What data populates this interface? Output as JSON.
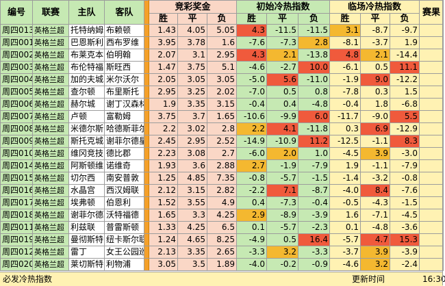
{
  "headers": {
    "id": "编号",
    "league": "联赛",
    "home": "主队",
    "away": "客队",
    "jingcai": "竞彩奖金",
    "initial": "初始冷热指数",
    "live": "临场冷热指数",
    "result": "赛果",
    "win": "胜",
    "draw": "平",
    "lose": "负"
  },
  "rows": [
    {
      "id": "周四013",
      "league": "英格兰超",
      "home": "托特纳姆",
      "away": "布赖顿",
      "jc": [
        "1.43",
        "4.05",
        "5.05"
      ],
      "init": [
        "4.3",
        "-11.5",
        "-11.5"
      ],
      "live": [
        "3.1",
        "-8.7",
        "-9.7"
      ]
    },
    {
      "id": "周四001",
      "league": "英格兰超",
      "home": "巴恩斯利",
      "away": "西布罗维",
      "jc": [
        "3.95",
        "3.78",
        "1.6"
      ],
      "init": [
        "-7.6",
        "-7.3",
        "2.8"
      ],
      "live": [
        "-8.1",
        "-3.7",
        "1.9"
      ]
    },
    {
      "id": "周四002",
      "league": "英格兰超",
      "home": "布莱克本",
      "away": "伯明翰",
      "jc": [
        "2.07",
        "3.1",
        "2.95"
      ],
      "init": [
        "4.3",
        "2.1",
        "-13.8"
      ],
      "live": [
        "4.8",
        "2.1",
        "-14.4"
      ]
    },
    {
      "id": "周四003",
      "league": "英格兰超",
      "home": "布伦特福",
      "away": "斯旺西",
      "jc": [
        "1.47",
        "3.75",
        "5.1"
      ],
      "init": [
        "-4.6",
        "-2.7",
        "10.0"
      ],
      "live": [
        "-6.1",
        "0.5",
        "11.1"
      ]
    },
    {
      "id": "周四004",
      "league": "英格兰超",
      "home": "加的夫城",
      "away": "米尔沃尔",
      "jc": [
        "2.05",
        "3.05",
        "3.05"
      ],
      "init": [
        "-5.0",
        "5.6",
        "-11.0"
      ],
      "live": [
        "-1.9",
        "9.0",
        "-12.2"
      ]
    },
    {
      "id": "周四005",
      "league": "英格兰超",
      "home": "查尔顿",
      "away": "布里斯托",
      "jc": [
        "2.95",
        "3.25",
        "2.02"
      ],
      "init": [
        "-7.0",
        "0.5",
        "0.8"
      ],
      "live": [
        "-7.8",
        "0.3",
        "1.5"
      ]
    },
    {
      "id": "周四006",
      "league": "英格兰超",
      "home": "赫尔城",
      "away": "谢丁汉森林",
      "jc": [
        "1.9",
        "3.35",
        "3.15"
      ],
      "init": [
        "-0.4",
        "0.4",
        "-4.8"
      ],
      "live": [
        "-0.4",
        "1.8",
        "-6.8"
      ]
    },
    {
      "id": "周四007",
      "league": "英格兰超",
      "home": "卢顿",
      "away": "富勒姆",
      "jc": [
        "3.75",
        "3.7",
        "1.65"
      ],
      "init": [
        "-10.6",
        "-9.9",
        "6.0"
      ],
      "live": [
        "-11.7",
        "-9.0",
        "5.5"
      ]
    },
    {
      "id": "周四008",
      "league": "英格兰超",
      "home": "米德尔斯",
      "away": "哈德斯菲尔",
      "jc": [
        "2.2",
        "3.02",
        "2.8"
      ],
      "init": [
        "2.2",
        "4.1",
        "-11.8"
      ],
      "live": [
        "0.3",
        "6.9",
        "-12.9"
      ]
    },
    {
      "id": "周四009",
      "league": "英格兰超",
      "home": "斯托克城",
      "away": "谢菲尔德星",
      "jc": [
        "2.45",
        "2.95",
        "2.52"
      ],
      "init": [
        "-14.9",
        "-10.9",
        "11.2"
      ],
      "live": [
        "-12.5",
        "-1.1",
        "8.3"
      ]
    },
    {
      "id": "周四010",
      "league": "英格兰超",
      "home": "维冈竞技",
      "away": "德比郡",
      "jc": [
        "2.23",
        "3.08",
        "2.7"
      ],
      "init": [
        "-6.0",
        "2.0",
        "1.0"
      ],
      "live": [
        "-4.5",
        "3.9",
        "-3.0"
      ]
    },
    {
      "id": "周四014",
      "league": "英格兰超",
      "home": "阿斯顿维",
      "away": "诺维奇",
      "jc": [
        "1.93",
        "3.6",
        "2.88"
      ],
      "init": [
        "2.7",
        "-1.9",
        "-7.9"
      ],
      "live": [
        "1.9",
        "-1.1",
        "-7.9"
      ]
    },
    {
      "id": "周四015",
      "league": "英格兰超",
      "home": "切尔西",
      "away": "南安普敦",
      "jc": [
        "1.25",
        "4.85",
        "7.35"
      ],
      "init": [
        "-0.8",
        "-5.7",
        "-1.5"
      ],
      "live": [
        "-1.4",
        "-3.2",
        "-0.8"
      ]
    },
    {
      "id": "周四016",
      "league": "英格兰超",
      "home": "水晶宫",
      "away": "西汉姆联",
      "jc": [
        "2.12",
        "3.15",
        "2.82"
      ],
      "init": [
        "-2.2",
        "7.1",
        "-8.7"
      ],
      "live": [
        "-4.0",
        "8.4",
        "-7.6"
      ]
    },
    {
      "id": "周四017",
      "league": "英格兰超",
      "home": "埃弗顿",
      "away": "伯恩利",
      "jc": [
        "1.52",
        "3.55",
        "4.9"
      ],
      "init": [
        "0.4",
        "-7.3",
        "-0.4"
      ],
      "live": [
        "-0.5",
        "-4.3",
        "-1.5"
      ]
    },
    {
      "id": "周四018",
      "league": "英格兰超",
      "home": "谢菲尔德联",
      "away": "沃特福德",
      "jc": [
        "1.65",
        "3.3",
        "4.25"
      ],
      "init": [
        "2.9",
        "-8.9",
        "-3.9"
      ],
      "live": [
        "1.6",
        "-7.1",
        "-4.5"
      ]
    },
    {
      "id": "周四011",
      "league": "英格兰超",
      "home": "利兹联",
      "away": "普雷斯顿",
      "jc": [
        "1.33",
        "4.25",
        "6.5"
      ],
      "init": [
        "0.1",
        "-5.7",
        "-2.3"
      ],
      "live": [
        "0.1",
        "-4.8",
        "-3.6"
      ]
    },
    {
      "id": "周四019",
      "league": "英格兰超",
      "home": "曼彻斯特",
      "away": "纽卡斯尔联",
      "jc": [
        "1.24",
        "4.65",
        "8.25"
      ],
      "init": [
        "-4.9",
        "0.5",
        "16.4"
      ],
      "live": [
        "-5.7",
        "4.7",
        "15.3"
      ]
    },
    {
      "id": "周四012",
      "league": "英格兰超",
      "home": "雷丁",
      "away": "女王公园巡",
      "jc": [
        "2.13",
        "3.35",
        "2.65"
      ],
      "init": [
        "-3.3",
        "3.2",
        "-3.3"
      ],
      "live": [
        "-3.7",
        "3.9",
        "-3.9"
      ]
    },
    {
      "id": "周四020",
      "league": "英格兰超",
      "home": "莱切斯特",
      "away": "利物浦",
      "jc": [
        "3.05",
        "3.5",
        "1.89"
      ],
      "init": [
        "-4.0",
        "-0.2",
        "-0.9"
      ],
      "live": [
        "-4.6",
        "3.2",
        "-2.4"
      ]
    }
  ],
  "footer": {
    "left": "必发冷热指数",
    "update_label": "更新时间",
    "time": "16:30"
  },
  "colors": {
    "hot": "#f05a3c",
    "warm": "#f4b830",
    "green": "#c6e9b3",
    "pink": "#fad7c6",
    "yellow": "#fff2b3"
  }
}
